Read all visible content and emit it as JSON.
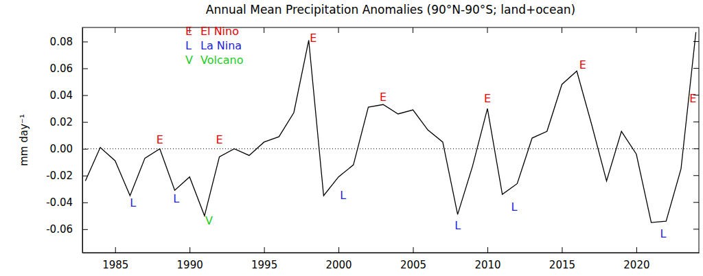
{
  "chart_data": {
    "type": "line",
    "title": "Annual Mean Precipitation Anomalies (90°N-90°S; land+ocean)",
    "y_label": "mm day⁻¹",
    "x": [
      1983,
      1984,
      1985,
      1986,
      1987,
      1988,
      1989,
      1990,
      1991,
      1992,
      1993,
      1994,
      1995,
      1996,
      1997,
      1998,
      1999,
      2000,
      2001,
      2002,
      2003,
      2004,
      2005,
      2006,
      2007,
      2008,
      2009,
      2010,
      2011,
      2012,
      2013,
      2014,
      2015,
      2016,
      2017,
      2018,
      2019,
      2020,
      2021,
      2022,
      2023,
      2024
    ],
    "values": [
      -0.024,
      0.001,
      -0.009,
      -0.035,
      -0.007,
      0.0,
      -0.031,
      -0.021,
      -0.05,
      -0.006,
      0.0,
      -0.005,
      0.005,
      0.009,
      0.027,
      0.081,
      -0.035,
      -0.021,
      -0.012,
      0.031,
      0.033,
      0.026,
      0.029,
      0.014,
      0.005,
      -0.049,
      -0.013,
      0.03,
      -0.034,
      -0.026,
      0.008,
      0.013,
      0.048,
      0.058,
      0.018,
      -0.024,
      0.013,
      -0.004,
      -0.055,
      -0.054,
      -0.015,
      0.087
    ],
    "color": "#000000",
    "xlim": [
      1982.8,
      2024.2
    ],
    "xticks": [
      1985,
      1990,
      1995,
      2000,
      2005,
      2010,
      2015,
      2020
    ],
    "ylim": [
      -0.0775,
      0.0905
    ],
    "yticks": [
      -0.06,
      -0.04,
      -0.02,
      {
        "value": 0,
        "label": "0.00"
      },
      0.02,
      0.04,
      0.06,
      0.08
    ],
    "reference_lines": [
      0
    ],
    "legend_items": [
      {
        "symbol": "E",
        "label": "El Nino",
        "color": "#ee0000"
      },
      {
        "symbol": "L",
        "label": "La Nina",
        "color": "#2222dd"
      },
      {
        "symbol": "V",
        "label": "Volcano",
        "color": "#22cc22"
      }
    ],
    "annotations": [
      {
        "text": "L",
        "x": 1986.2,
        "y": -0.041,
        "color": "#2222dd"
      },
      {
        "text": "E",
        "x": 1988.0,
        "y": 0.006,
        "color": "#ee0000"
      },
      {
        "text": "L",
        "x": 1989.1,
        "y": -0.038,
        "color": "#2222dd"
      },
      {
        "text": "V",
        "x": 1991.3,
        "y": -0.054,
        "color": "#22cc22"
      },
      {
        "text": "E",
        "x": 1992.0,
        "y": 0.006,
        "color": "#ee0000"
      },
      {
        "text": "E",
        "x": 1998.3,
        "y": 0.082,
        "color": "#ee0000"
      },
      {
        "text": "L",
        "x": 2000.3,
        "y": -0.035,
        "color": "#2222dd"
      },
      {
        "text": "E",
        "x": 2003.0,
        "y": 0.038,
        "color": "#ee0000"
      },
      {
        "text": "L",
        "x": 2008.0,
        "y": -0.058,
        "color": "#2222dd"
      },
      {
        "text": "E",
        "x": 2010.0,
        "y": 0.037,
        "color": "#ee0000"
      },
      {
        "text": "L",
        "x": 2011.8,
        "y": -0.044,
        "color": "#2222dd"
      },
      {
        "text": "E",
        "x": 2016.4,
        "y": 0.062,
        "color": "#ee0000"
      },
      {
        "text": "L",
        "x": 2021.8,
        "y": -0.064,
        "color": "#2222dd"
      },
      {
        "text": "E",
        "x": 2023.8,
        "y": 0.037,
        "color": "#ee0000"
      }
    ]
  }
}
